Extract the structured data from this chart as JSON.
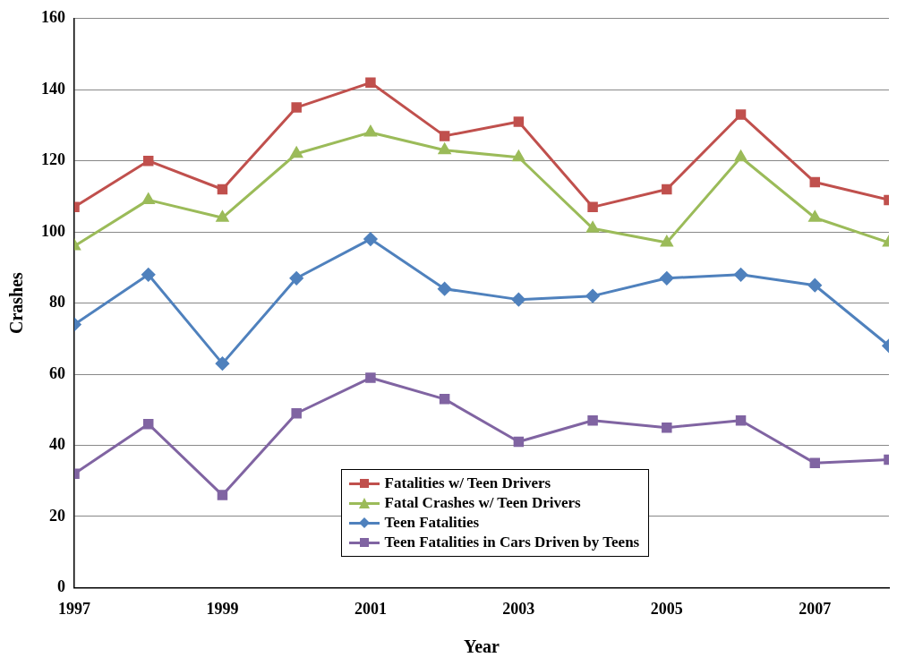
{
  "chart_data": {
    "type": "line",
    "xlabel": "Year",
    "ylabel": "Crashes",
    "x": [
      1997,
      1998,
      1999,
      2000,
      2001,
      2002,
      2003,
      2004,
      2005,
      2006,
      2007,
      2008
    ],
    "xlim": [
      1997,
      2008
    ],
    "xticks": [
      1997,
      1999,
      2001,
      2003,
      2005,
      2007
    ],
    "ylim": [
      0,
      160
    ],
    "yticks": [
      0,
      20,
      40,
      60,
      80,
      100,
      120,
      140,
      160
    ],
    "grid": "y",
    "legend": "bottom",
    "series": [
      {
        "name": "Fatalities w/ Teen Drivers",
        "color": "#c0504d",
        "marker": "square",
        "values": [
          107,
          120,
          112,
          135,
          142,
          127,
          131,
          107,
          112,
          133,
          114,
          109
        ]
      },
      {
        "name": "Fatal Crashes w/ Teen Drivers",
        "color": "#9bbb59",
        "marker": "triangle",
        "values": [
          96,
          109,
          104,
          122,
          128,
          123,
          121,
          101,
          97,
          121,
          104,
          97
        ]
      },
      {
        "name": "Teen Fatalities",
        "color": "#4f81bd",
        "marker": "diamond",
        "values": [
          74,
          88,
          63,
          87,
          98,
          84,
          81,
          82,
          87,
          88,
          85,
          68
        ]
      },
      {
        "name": "Teen Fatalities in Cars Driven by Teens",
        "color": "#8064a2",
        "marker": "square",
        "values": [
          32,
          46,
          26,
          49,
          59,
          53,
          41,
          47,
          45,
          47,
          35,
          36
        ]
      }
    ]
  }
}
